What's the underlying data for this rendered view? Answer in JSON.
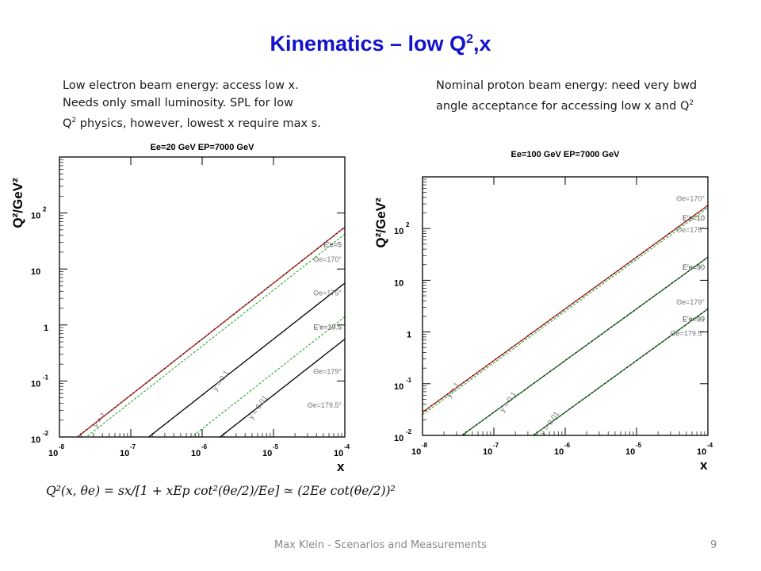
{
  "slide": {
    "title_main": "Kinematics – low Q",
    "title_sup": "2",
    "title_tail": ",x",
    "left_note": {
      "line1": "Low electron beam energy: access low x.",
      "line2": "Needs only small luminosity. SPL for low",
      "line3_pre": "Q",
      "line3_sup": "2",
      "line3_post": " physics, however, lowest x require max s."
    },
    "right_note": {
      "line1": "Nominal proton beam energy: need very bwd",
      "line2_pre": "angle acceptance for accessing low x and Q",
      "line2_sup": "2"
    },
    "formula": "Q²(x, θe) = sx/[1 + xEp cot²(θe/2)/Ee] ≃ (2Ee cot(θe/2))²",
    "footer": "Max Klein - Scenarios and Measurements",
    "page_number": "9"
  },
  "colors": {
    "title": "#1212cc",
    "kinematic_limit": "#000000",
    "theta_curve": "#e8312a",
    "energy_line": "#2aa82a"
  },
  "chart_data": [
    {
      "type": "line",
      "title": "Ee=20 GeV   EP=7000 GeV",
      "xlabel": "x",
      "ylabel": "Q²/GeV²",
      "xscale": "log",
      "yscale": "log",
      "xlim": [
        1e-08,
        0.0001
      ],
      "ylim": [
        0.01,
        1000
      ],
      "x_ticks": [
        "-8",
        "-7",
        "-6",
        "-5",
        "-4"
      ],
      "y_ticks": [
        {
          "v": 100,
          "base": "10",
          "exp": "2"
        },
        {
          "v": 10,
          "base": "10",
          "exp": ""
        },
        {
          "v": 1,
          "base": "1",
          "exp": ""
        },
        {
          "v": 0.1,
          "base": "10",
          "exp": "-1"
        },
        {
          "v": 0.01,
          "base": "10",
          "exp": "-2"
        }
      ],
      "ee": 20,
      "ep": 7000,
      "series": [
        {
          "kind": "ylimit",
          "label": "y = 1",
          "y": 1
        },
        {
          "kind": "ylimit",
          "label": "y = 0.1",
          "y": 0.1
        },
        {
          "kind": "ylimit",
          "label": "y = 0.01",
          "y": 0.01
        },
        {
          "kind": "theta",
          "label": "Θe=170°",
          "theta": 170
        },
        {
          "kind": "theta",
          "label": "Θe=175°",
          "theta": 175
        },
        {
          "kind": "theta",
          "label": "Θe=179°",
          "theta": 179
        },
        {
          "kind": "theta",
          "label": "Θe=179.5°",
          "theta": 179.5
        },
        {
          "kind": "energy",
          "label": "E′e=5",
          "E": 5
        },
        {
          "kind": "energy",
          "label": "E′e=19.5",
          "E": 19.5
        }
      ]
    },
    {
      "type": "line",
      "title": "Ee=100 GeV   EP=7000 GeV",
      "xlabel": "x",
      "ylabel": "Q²/GeV²",
      "xscale": "log",
      "yscale": "log",
      "xlim": [
        1e-08,
        0.0001
      ],
      "ylim": [
        0.01,
        1000
      ],
      "x_ticks": [
        "-8",
        "-7",
        "-6",
        "-5",
        "-4"
      ],
      "y_ticks": [
        {
          "v": 100,
          "base": "10",
          "exp": "2"
        },
        {
          "v": 10,
          "base": "10",
          "exp": ""
        },
        {
          "v": 1,
          "base": "1",
          "exp": ""
        },
        {
          "v": 0.1,
          "base": "10",
          "exp": "-1"
        },
        {
          "v": 0.01,
          "base": "10",
          "exp": "-2"
        }
      ],
      "ee": 100,
      "ep": 7000,
      "series": [
        {
          "kind": "ylimit",
          "label": "y = 1",
          "y": 1
        },
        {
          "kind": "ylimit",
          "label": "y = 0.1",
          "y": 0.1
        },
        {
          "kind": "ylimit",
          "label": "y = 0.01",
          "y": 0.01
        },
        {
          "kind": "theta",
          "label": "Θe=170°",
          "theta": 170
        },
        {
          "kind": "theta",
          "label": "Θe=175°",
          "theta": 175
        },
        {
          "kind": "theta",
          "label": "Θe=179°",
          "theta": 179
        },
        {
          "kind": "theta",
          "label": "Θe=179.5°",
          "theta": 179.5
        },
        {
          "kind": "energy",
          "label": "E′e=10",
          "E": 10
        },
        {
          "kind": "energy",
          "label": "E′e=90",
          "E": 90
        },
        {
          "kind": "energy",
          "label": "E′e=99",
          "E": 99
        }
      ]
    }
  ]
}
